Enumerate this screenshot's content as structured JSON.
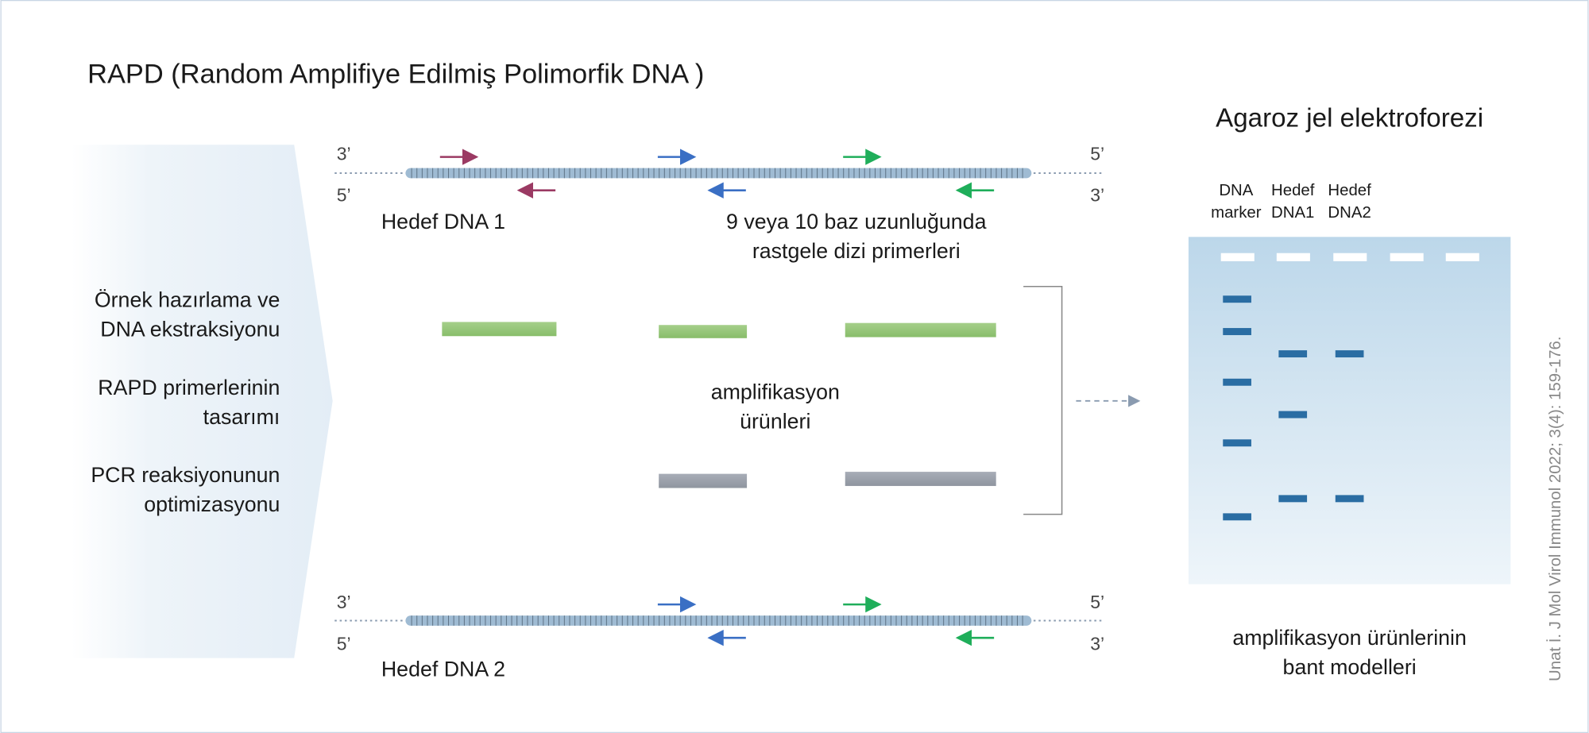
{
  "title": "RAPD (Random Amplifiye Edilmiş Polimorfik DNA )",
  "steps": [
    [
      "Örnek hazırlama ve",
      "DNA ekstraksiyonu"
    ],
    [
      "RAPD primerlerinin",
      "tasarımı"
    ],
    [
      "PCR reaksiyonunun",
      "optimizasyonu"
    ]
  ],
  "dna1": {
    "ends": [
      "3’",
      "5’",
      "5’",
      "3’"
    ],
    "name": "Hedef DNA 1"
  },
  "primers_label": [
    "9 veya 10 baz uzunluğunda",
    "rastgele dizi primerleri"
  ],
  "products_label": [
    "amplifikasyon",
    "ürünleri"
  ],
  "dna2": {
    "ends": [
      "3’",
      "5’",
      "5’",
      "3’"
    ],
    "name": "Hedef DNA 2"
  },
  "gel": {
    "title": "Agaroz jel elektroforezi",
    "lanes": [
      [
        "DNA",
        "marker"
      ],
      [
        "Hedef",
        "DNA1"
      ],
      [
        "Hedef",
        "DNA2"
      ]
    ],
    "caption": [
      "amplifikasyon ürünlerinin",
      "bant modelleri"
    ]
  },
  "citation": "Unat İ. J Mol Virol Immunol 2022; 3(4): 159-176."
}
